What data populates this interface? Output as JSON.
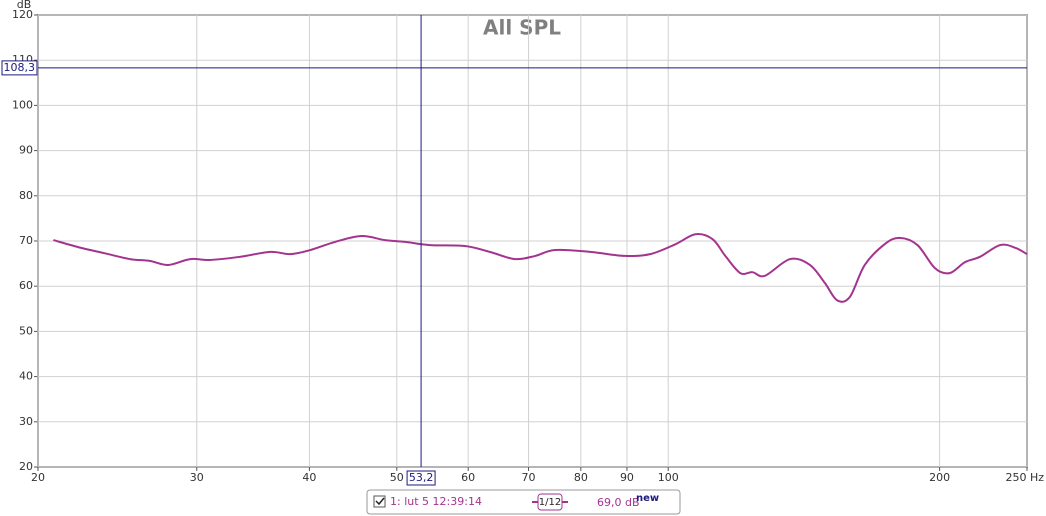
{
  "chart_data": {
    "type": "line",
    "title": "All SPL",
    "y_label": "dB",
    "x_scale": "log",
    "xlim": [
      20,
      250
    ],
    "ylim": [
      20,
      120
    ],
    "xticks": [
      20,
      30,
      40,
      50,
      60,
      70,
      80,
      90,
      100,
      200,
      {
        "value": 250,
        "label": "250 Hz"
      }
    ],
    "yticks": [
      20,
      30,
      40,
      50,
      60,
      70,
      80,
      90,
      100,
      110,
      120
    ],
    "grid": true,
    "x": [
      20.8,
      22.3,
      23.7,
      25.3,
      26.6,
      27.9,
      29.5,
      31.0,
      33.5,
      36.2,
      38.1,
      40.1,
      42.7,
      45.7,
      48.5,
      51.1,
      54.4,
      59.5,
      63.4,
      67.6,
      71.2,
      74.9,
      81.9,
      89.5,
      95.5,
      101.9,
      107.2,
      112,
      115.7,
      120.2,
      124,
      128,
      136.5,
      143.6,
      149.2,
      153.9,
      159,
      165.2,
      173.8,
      180.6,
      189,
      197.6,
      205.2,
      213.3,
      221.7,
      233.4,
      242.6,
      250
    ],
    "series": [
      {
        "name": "1: lut 5 12:39:14",
        "color": "#a3348e",
        "values": [
          70.2,
          68.5,
          67.3,
          66.0,
          65.6,
          64.7,
          66.0,
          65.8,
          66.5,
          67.6,
          67.1,
          68.0,
          69.8,
          71.1,
          70.2,
          69.8,
          69.1,
          68.9,
          67.6,
          66.0,
          66.7,
          68.0,
          67.6,
          66.7,
          67.1,
          69.3,
          71.5,
          70.4,
          66.7,
          62.9,
          63.1,
          62.3,
          66.0,
          64.7,
          60.7,
          56.9,
          57.6,
          64.7,
          69.3,
          70.7,
          69.1,
          64.0,
          62.9,
          65.3,
          66.5,
          69.1,
          68.5,
          67.1
        ]
      }
    ],
    "cursor": {
      "x": 53.2,
      "x_label": "53,2",
      "y": 108.3,
      "y_label": "108,3"
    },
    "legend": {
      "smoothing": "1/12",
      "readout": "69,0 dB",
      "badge": "new"
    }
  }
}
